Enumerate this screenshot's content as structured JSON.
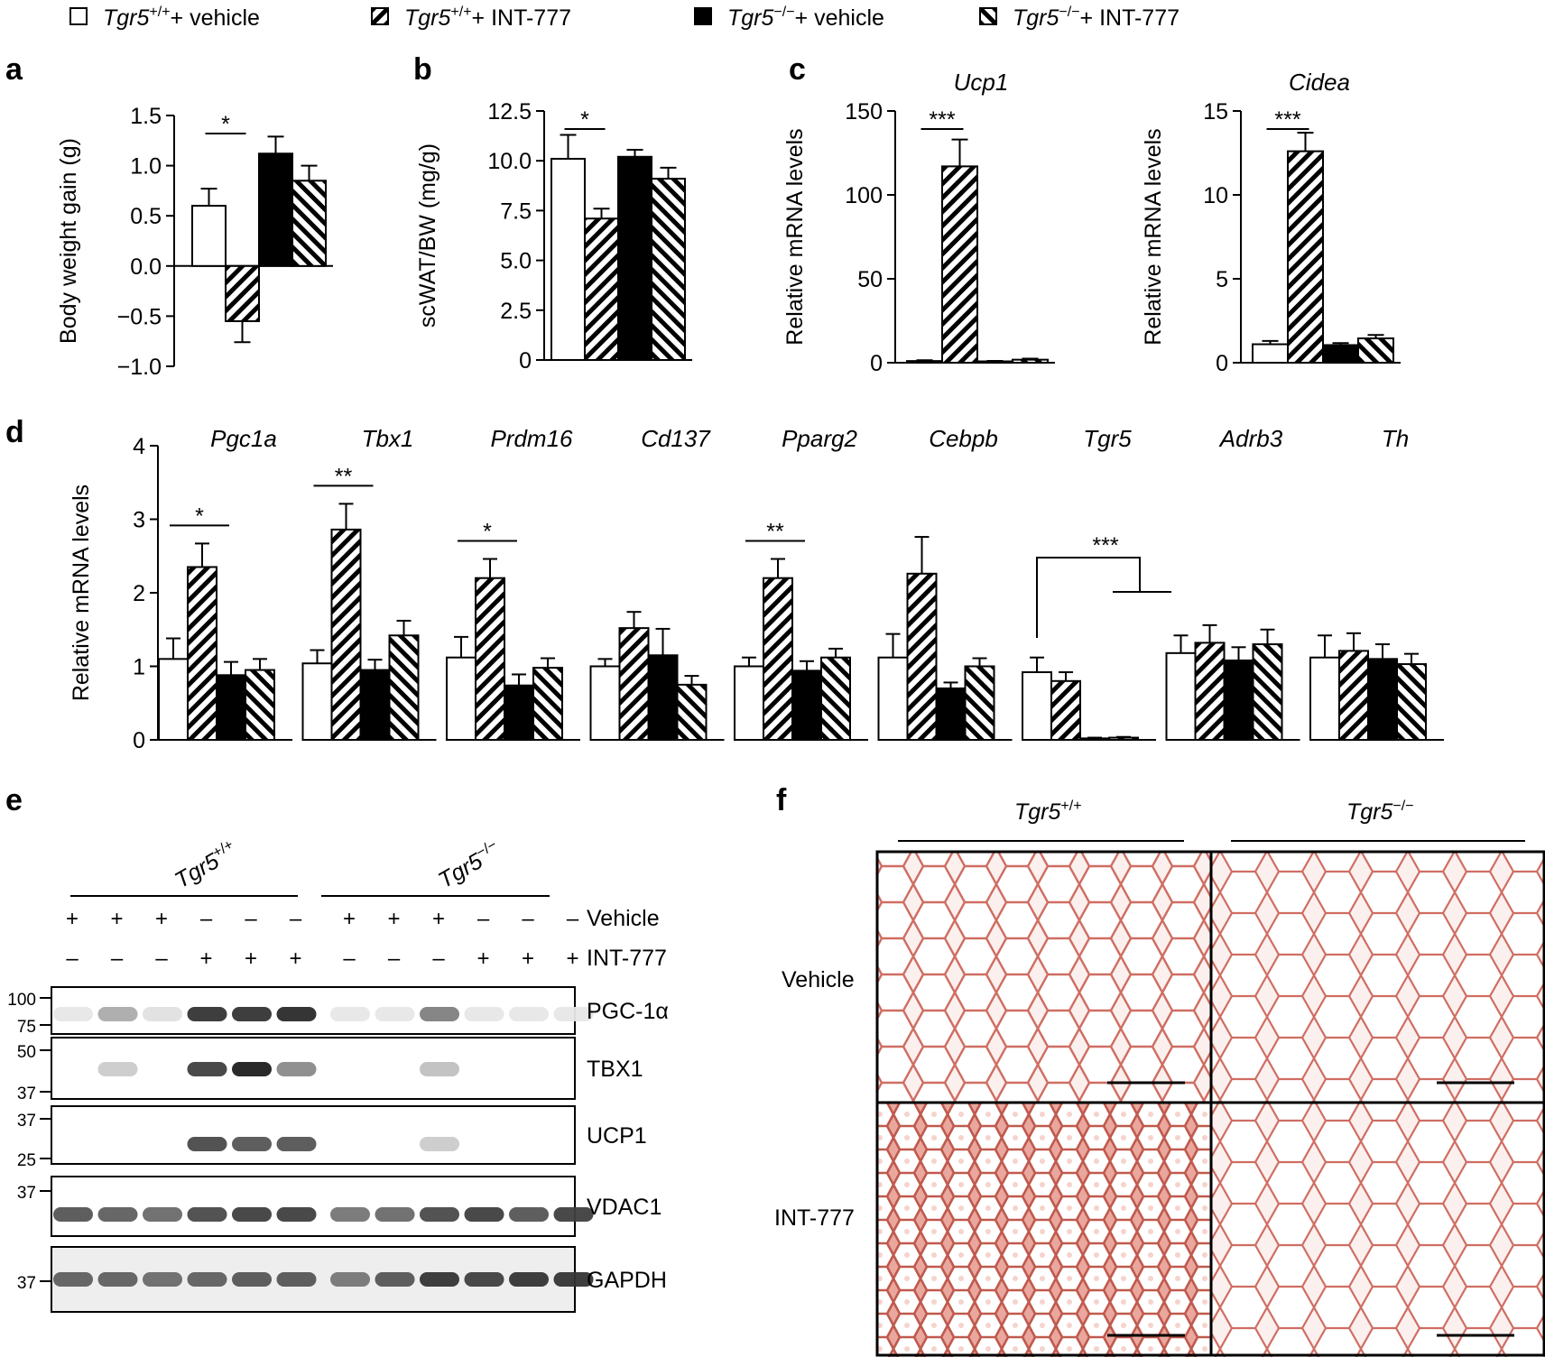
{
  "legend": [
    {
      "gene": "Tgr5",
      "sup": "+/+",
      "treat": "+ vehicle",
      "style": "open"
    },
    {
      "gene": "Tgr5",
      "sup": "+/+",
      "treat": "+ INT-777",
      "style": "hatch"
    },
    {
      "gene": "Tgr5",
      "sup": "−/−",
      "treat": "+ vehicle",
      "style": "solid"
    },
    {
      "gene": "Tgr5",
      "sup": "−/−",
      "treat": "+ INT-777",
      "style": "hatch2"
    }
  ],
  "panel_letters": {
    "a": "a",
    "b": "b",
    "c": "c",
    "d": "d",
    "e": "e",
    "f": "f"
  },
  "sig": {
    "one": "*",
    "two": "**",
    "three": "***"
  },
  "chart_data": [
    {
      "id": "a",
      "type": "bar",
      "title": "",
      "ylabel": "Body weight gain (g)",
      "ylim": [
        -1.0,
        1.5
      ],
      "yticks": [
        -1.0,
        -0.5,
        0.0,
        0.5,
        1.0,
        1.5
      ],
      "ytick_labels": [
        "−1.0",
        "−0.5",
        "0.0",
        "0.5",
        "1.0",
        "1.5"
      ],
      "categories": [
        "Tgr5+/+ + vehicle",
        "Tgr5+/+ + INT-777",
        "Tgr5−/− + vehicle",
        "Tgr5−/− + INT-777"
      ],
      "values": [
        0.6,
        -0.55,
        1.12,
        0.85
      ],
      "errors": [
        0.17,
        0.21,
        0.17,
        0.15
      ],
      "annotations": [
        {
          "from": 0,
          "to": 1,
          "label": "*"
        }
      ]
    },
    {
      "id": "b",
      "type": "bar",
      "title": "",
      "ylabel": "scWAT/BW (mg/g)",
      "ylim": [
        0,
        12.5
      ],
      "yticks": [
        0,
        2.5,
        5.0,
        7.5,
        10.0,
        12.5
      ],
      "ytick_labels": [
        "0",
        "2.5",
        "5.0",
        "7.5",
        "10.0",
        "12.5"
      ],
      "categories": [
        "Tgr5+/+ + vehicle",
        "Tgr5+/+ + INT-777",
        "Tgr5−/− + vehicle",
        "Tgr5−/− + INT-777"
      ],
      "values": [
        10.1,
        7.1,
        10.2,
        9.1
      ],
      "errors": [
        1.2,
        0.5,
        0.35,
        0.55
      ],
      "annotations": [
        {
          "from": 0,
          "to": 1,
          "label": "*"
        }
      ]
    },
    {
      "id": "c1",
      "type": "bar",
      "title": "Ucp1",
      "ylabel": "Relative mRNA levels",
      "ylim": [
        0,
        150
      ],
      "yticks": [
        0,
        50,
        100,
        150
      ],
      "ytick_labels": [
        "0",
        "50",
        "100",
        "150"
      ],
      "categories": [
        "Tgr5+/+ + vehicle",
        "Tgr5+/+ + INT-777",
        "Tgr5−/− + vehicle",
        "Tgr5−/− + INT-777"
      ],
      "values": [
        1.0,
        117,
        0.8,
        1.8
      ],
      "errors": [
        0.5,
        16,
        0.3,
        0.6
      ],
      "annotations": [
        {
          "from": 0,
          "to": 1,
          "label": "***"
        }
      ]
    },
    {
      "id": "c2",
      "type": "bar",
      "title": "Cidea",
      "ylabel": "Relative mRNA levels",
      "ylim": [
        0,
        15
      ],
      "yticks": [
        0,
        5,
        10,
        15
      ],
      "ytick_labels": [
        "0",
        "5",
        "10",
        "15"
      ],
      "categories": [
        "Tgr5+/+ + vehicle",
        "Tgr5+/+ + INT-777",
        "Tgr5−/− + vehicle",
        "Tgr5−/− + INT-777"
      ],
      "values": [
        1.1,
        12.6,
        1.05,
        1.45
      ],
      "errors": [
        0.2,
        1.1,
        0.12,
        0.2
      ],
      "annotations": [
        {
          "from": 0,
          "to": 1,
          "label": "***"
        }
      ]
    },
    {
      "id": "d",
      "type": "bar",
      "title": "",
      "ylabel": "Relative mRNA levels",
      "ylim": [
        0,
        4
      ],
      "yticks": [
        0,
        1,
        2,
        3,
        4
      ],
      "ytick_labels": [
        "0",
        "1",
        "2",
        "3",
        "4"
      ],
      "genes": [
        "Pgc1a",
        "Tbx1",
        "Prdm16",
        "Cd137",
        "Pparg2",
        "Cebpb",
        "Tgr5",
        "Adrb3",
        "Th"
      ],
      "series": [
        {
          "name": "Tgr5+/+ + vehicle",
          "values": [
            1.1,
            1.04,
            1.12,
            1.0,
            1.0,
            1.12,
            0.92,
            1.18,
            1.12
          ],
          "errors": [
            0.28,
            0.18,
            0.28,
            0.1,
            0.12,
            0.32,
            0.2,
            0.24,
            0.3
          ]
        },
        {
          "name": "Tgr5+/+ + INT-777",
          "values": [
            2.35,
            2.86,
            2.2,
            1.52,
            2.2,
            2.26,
            0.8,
            1.32,
            1.21
          ],
          "errors": [
            0.32,
            0.35,
            0.26,
            0.22,
            0.26,
            0.5,
            0.12,
            0.24,
            0.24
          ]
        },
        {
          "name": "Tgr5−/− + vehicle",
          "values": [
            0.88,
            0.95,
            0.74,
            1.15,
            0.94,
            0.7,
            0.02,
            1.08,
            1.1
          ],
          "errors": [
            0.18,
            0.14,
            0.15,
            0.36,
            0.13,
            0.08,
            0.01,
            0.18,
            0.2
          ]
        },
        {
          "name": "Tgr5−/− + INT-777",
          "values": [
            0.95,
            1.42,
            0.98,
            0.75,
            1.12,
            1.0,
            0.03,
            1.3,
            1.03
          ],
          "errors": [
            0.15,
            0.2,
            0.13,
            0.12,
            0.12,
            0.11,
            0.01,
            0.2,
            0.14
          ]
        }
      ],
      "annotations": [
        {
          "gene": "Pgc1a",
          "label": "*"
        },
        {
          "gene": "Tbx1",
          "label": "**"
        },
        {
          "gene": "Prdm16",
          "label": "*"
        },
        {
          "gene": "Pparg2",
          "label": "**"
        },
        {
          "gene": "Tgr5",
          "label": "***",
          "bracket": "+/+ vs −/−"
        }
      ]
    }
  ],
  "western": {
    "group_labels": [
      {
        "gene": "Tgr5",
        "sup": "+/+"
      },
      {
        "gene": "Tgr5",
        "sup": "−/−"
      }
    ],
    "row_labels": [
      "Vehicle",
      "INT-777"
    ],
    "vehicle": [
      "+",
      "+",
      "+",
      "–",
      "–",
      "–",
      "+",
      "+",
      "+",
      "–",
      "–",
      "–"
    ],
    "int777": [
      "–",
      "–",
      "–",
      "+",
      "+",
      "+",
      "–",
      "–",
      "–",
      "+",
      "+",
      "+"
    ],
    "blots": [
      {
        "label": "PGC-1α",
        "markers": [
          "100",
          "75"
        ],
        "intensity": [
          0.02,
          0.3,
          0.05,
          0.85,
          0.85,
          0.9,
          0.02,
          0.02,
          0.5,
          0.02,
          0.02,
          0.02
        ]
      },
      {
        "label": "TBX1",
        "markers": [
          "50",
          "37"
        ],
        "intensity": [
          0.0,
          0.15,
          0.0,
          0.8,
          0.95,
          0.45,
          0.0,
          0.0,
          0.2,
          0.0,
          0.0,
          0.0
        ]
      },
      {
        "label": "UCP1",
        "markers": [
          "37",
          "25"
        ],
        "intensity": [
          0.0,
          0.0,
          0.0,
          0.75,
          0.7,
          0.7,
          0.0,
          0.0,
          0.15,
          0.0,
          0.0,
          0.0
        ]
      },
      {
        "label": "VDAC1",
        "markers": [
          "37"
        ],
        "intensity": [
          0.7,
          0.65,
          0.6,
          0.75,
          0.8,
          0.8,
          0.55,
          0.6,
          0.75,
          0.8,
          0.7,
          0.8
        ]
      },
      {
        "label": "GAPDH",
        "markers": [
          "37"
        ],
        "intensity": [
          0.65,
          0.65,
          0.6,
          0.65,
          0.7,
          0.7,
          0.55,
          0.7,
          0.85,
          0.8,
          0.85,
          0.85
        ]
      }
    ]
  },
  "histology": {
    "columns": [
      {
        "gene": "Tgr5",
        "sup": "+/+"
      },
      {
        "gene": "Tgr5",
        "sup": "−/−"
      }
    ],
    "rows": [
      "Vehicle",
      "INT-777"
    ]
  },
  "colors": {
    "ink": "#000000",
    "bg": "#ffffff",
    "stain": "#cf6d62",
    "stain_light": "#f4d8d2"
  }
}
